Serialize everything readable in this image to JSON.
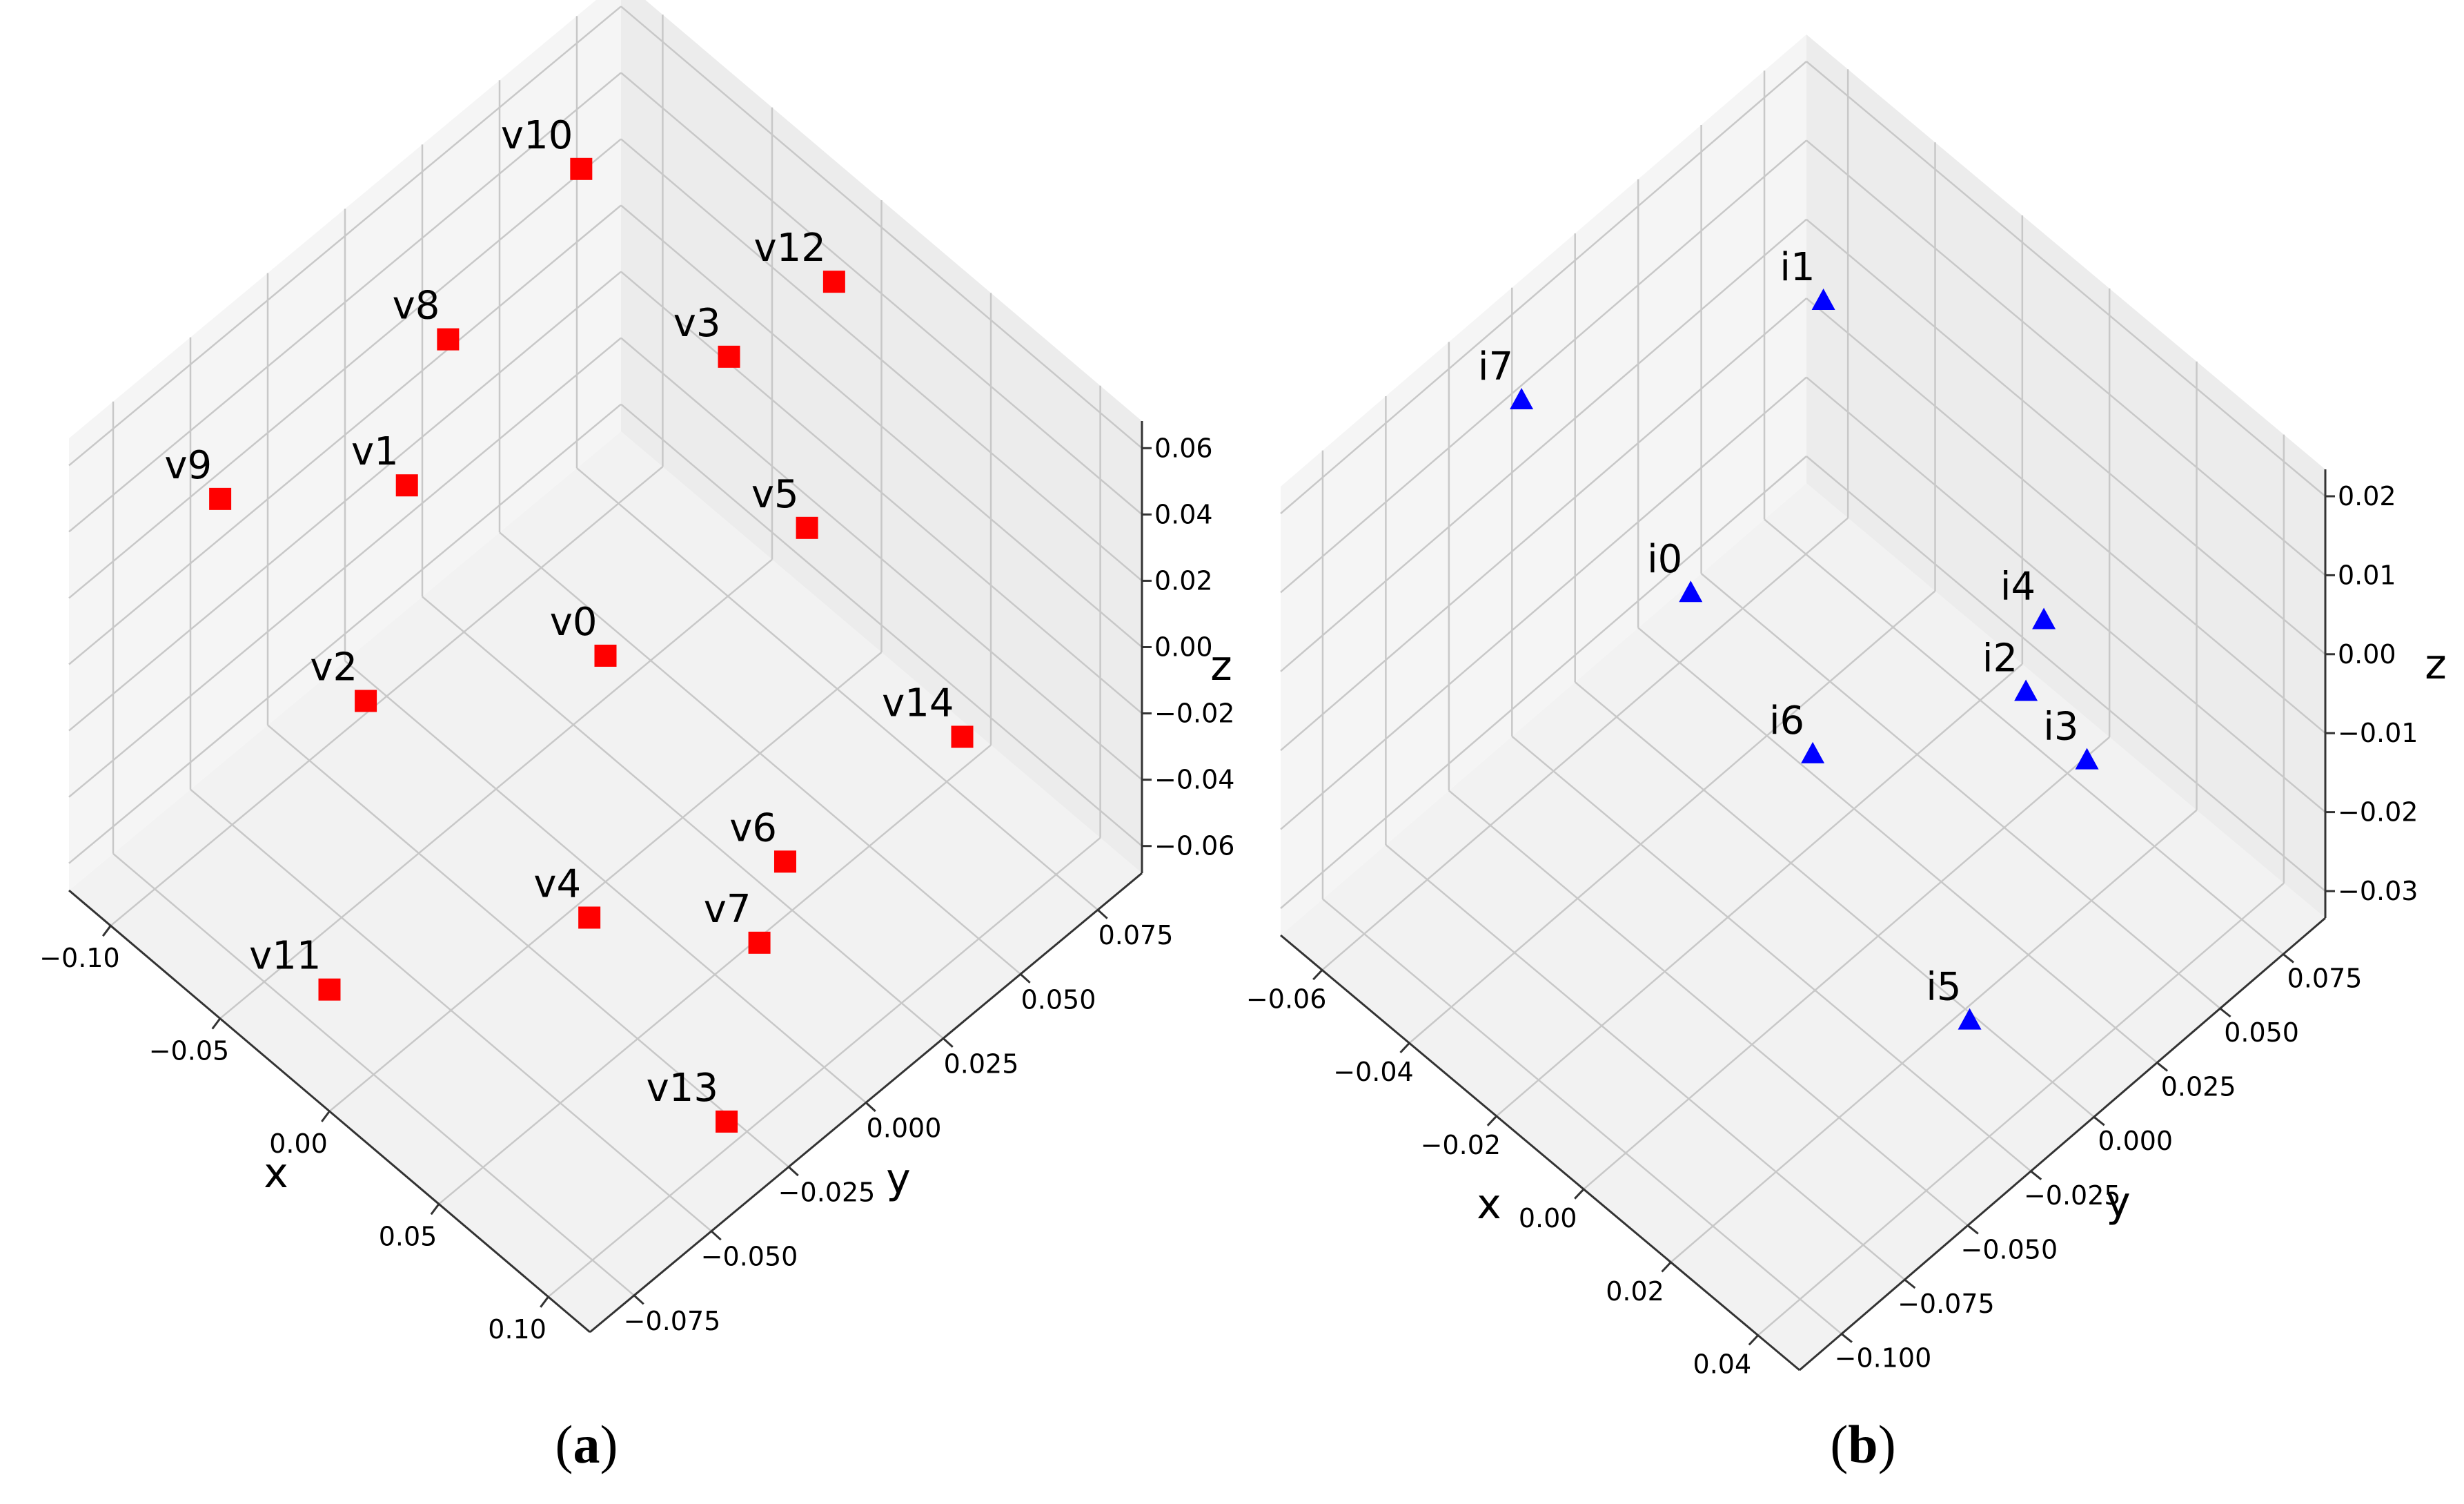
{
  "chart_data": [
    {
      "type": "scatter",
      "panel": "a",
      "projection": "3d",
      "xlabel": "x",
      "ylabel": "y",
      "zlabel": "z",
      "xlim": [
        -0.11,
        0.11
      ],
      "ylim": [
        -0.09,
        0.09
      ],
      "zlim": [
        -0.065,
        0.065
      ],
      "xticks": [
        "−0.10",
        "−0.05",
        "0.00",
        "0.05",
        "0.10"
      ],
      "yticks": [
        "−0.075",
        "−0.050",
        "−0.025",
        "0.000",
        "0.025",
        "0.050",
        "0.075"
      ],
      "zticks": [
        "−0.06",
        "−0.04",
        "−0.02",
        "0.00",
        "0.02",
        "0.04",
        "0.06"
      ],
      "marker": "square",
      "marker_color": "#ff0000",
      "grid": true,
      "points": [
        {
          "label": "v0",
          "x": 0.0,
          "y": 0.0,
          "z": 0.0
        },
        {
          "label": "v1",
          "x": -0.045,
          "y": -0.03,
          "z": 0.045
        },
        {
          "label": "v2",
          "x": -0.03,
          "y": -0.055,
          "z": 0.01
        },
        {
          "label": "v3",
          "x": -0.01,
          "y": 0.048,
          "z": 0.045
        },
        {
          "label": "v4",
          "x": 0.045,
          "y": -0.04,
          "z": -0.02
        },
        {
          "label": "v5",
          "x": 0.01,
          "y": 0.058,
          "z": 0.0
        },
        {
          "label": "v6",
          "x": 0.05,
          "y": 0.02,
          "z": -0.045
        },
        {
          "label": "v7",
          "x": 0.065,
          "y": 0.0,
          "z": -0.045
        },
        {
          "label": "v8",
          "x": -0.06,
          "y": -0.005,
          "z": 0.06
        },
        {
          "label": "v9",
          "x": -0.085,
          "y": -0.06,
          "z": 0.04
        },
        {
          "label": "v10",
          "x": -0.075,
          "y": 0.05,
          "z": 0.06
        },
        {
          "label": "v11",
          "x": 0.0,
          "y": -0.09,
          "z": -0.03
        },
        {
          "label": "v12",
          "x": -0.02,
          "y": 0.09,
          "z": 0.03
        },
        {
          "label": "v13",
          "x": 0.09,
          "y": -0.03,
          "z": -0.06
        },
        {
          "label": "v14",
          "x": 0.06,
          "y": 0.07,
          "z": -0.04
        }
      ]
    },
    {
      "type": "scatter",
      "panel": "b",
      "projection": "3d",
      "xlabel": "x",
      "ylabel": "y",
      "zlabel": "z",
      "xlim": [
        -0.07,
        0.04
      ],
      "ylim": [
        -0.1,
        0.09
      ],
      "zlim": [
        -0.03,
        0.025
      ],
      "xticks": [
        "−0.06",
        "−0.04",
        "−0.02",
        "0.00",
        "0.02",
        "0.04"
      ],
      "yticks": [
        "−0.100",
        "−0.075",
        "−0.050",
        "−0.025",
        "0.000",
        "0.025",
        "0.050",
        "0.075"
      ],
      "zticks": [
        "−0.03",
        "−0.02",
        "−0.01",
        "0.00",
        "0.01",
        "0.02"
      ],
      "marker": "triangle",
      "marker_color": "#0000ff",
      "grid": true,
      "points": [
        {
          "label": "i0",
          "x": -0.03,
          "y": -0.02,
          "z": 0.008
        },
        {
          "label": "i1",
          "x": -0.04,
          "y": 0.045,
          "z": 0.02
        },
        {
          "label": "i2",
          "x": 0.0,
          "y": 0.05,
          "z": -0.01
        },
        {
          "label": "i3",
          "x": 0.01,
          "y": 0.055,
          "z": -0.015
        },
        {
          "label": "i4",
          "x": -0.005,
          "y": 0.065,
          "z": -0.008
        },
        {
          "label": "i5",
          "x": 0.035,
          "y": -0.03,
          "z": -0.01
        },
        {
          "label": "i6",
          "x": -0.01,
          "y": -0.01,
          "z": -0.005
        },
        {
          "label": "i7",
          "x": -0.06,
          "y": -0.03,
          "z": 0.02
        }
      ]
    }
  ],
  "captions": {
    "a_open": "(",
    "a_letter": "a",
    "a_close": ")",
    "b_open": "(",
    "b_letter": "b",
    "b_close": ")"
  }
}
